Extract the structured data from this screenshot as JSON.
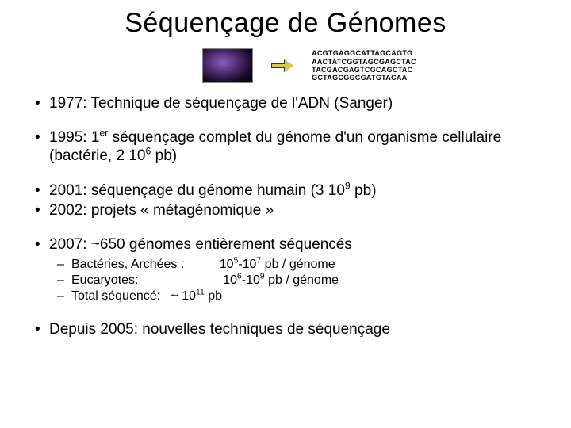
{
  "title": "Séquençage de Génomes",
  "sequence_lines": [
    "ACGTGAGGCATTAGCAGTG",
    "AACTATCGGTAGCGAGCTAC",
    "TACGACGAGTCGCAGCTAC",
    "GCTAGCGGCGATGTACAA"
  ],
  "bullets": {
    "b1": "1977: Technique de séquençage de l'ADN (Sanger)",
    "b2_pre": "1995: 1",
    "b2_sup": "er",
    "b2_post": " séquençage complet du génome d'un organisme cellulaire (bactérie, 2 10",
    "b2_sup2": "6",
    "b2_end": " pb)",
    "b3_pre": "2001: séquençage du génome humain (3 10",
    "b3_sup": "9",
    "b3_end": " pb)",
    "b4": "2002: projets « métagénomique »",
    "b5": "2007: ~650 génomes entièrement séquencés",
    "b6": "Depuis 2005: nouvelles techniques de séquençage"
  },
  "sub": {
    "s1_label": "Bactéries, Archées :          10",
    "s1_sup1": "5",
    "s1_mid": "-10",
    "s1_sup2": "7",
    "s1_end": " pb / génome",
    "s2_label": "Eucaryotes:                        10",
    "s2_sup1": "6",
    "s2_mid": "-10",
    "s2_sup2": "9",
    "s2_end": " pb / génome",
    "s3_label": "Total séquencé:   ~ 10",
    "s3_sup": "11",
    "s3_end": " pb"
  },
  "colors": {
    "text": "#000000",
    "background": "#ffffff",
    "arrow_fill": "#d4c84a"
  }
}
